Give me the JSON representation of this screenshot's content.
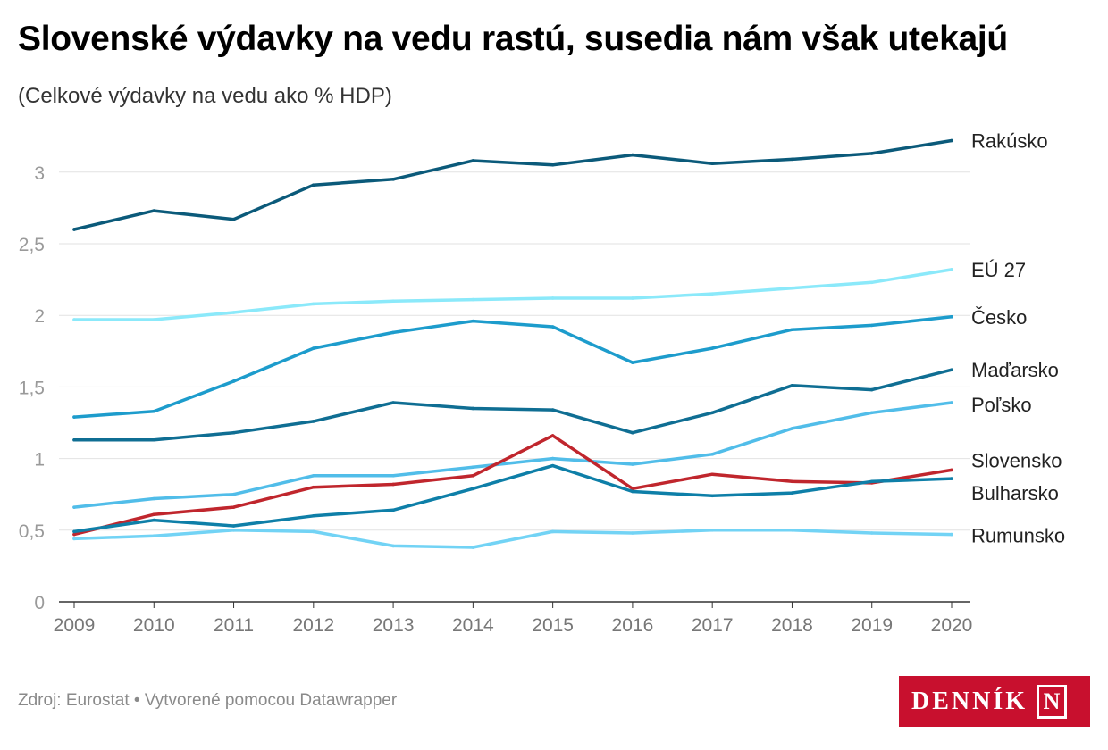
{
  "title": "Slovenské výdavky na vedu rastú, susedia nám však utekajú",
  "subtitle": "(Celkové výdavky na vedu ako % HDP)",
  "footer": {
    "source": "Zdroj: Eurostat • Vytvorené pomocou Datawrapper",
    "logo_text": "DENNÍK",
    "logo_mark": "N"
  },
  "chart_data": {
    "type": "line",
    "x": [
      2009,
      2010,
      2011,
      2012,
      2013,
      2014,
      2015,
      2016,
      2017,
      2018,
      2019,
      2020
    ],
    "ylim": [
      0,
      3.3
    ],
    "yticks": [
      0,
      0.5,
      1,
      1.5,
      2,
      2.5,
      3
    ],
    "ytick_labels": [
      "0",
      "0,5",
      "1",
      "1,5",
      "2",
      "2,5",
      "3"
    ],
    "grid": true,
    "legend": "direct labels at right end of lines",
    "series": [
      {
        "name": "Rakúsko",
        "color": "#0b5a7a",
        "values": [
          2.6,
          2.73,
          2.67,
          2.91,
          2.95,
          3.08,
          3.05,
          3.12,
          3.06,
          3.09,
          3.13,
          3.22
        ]
      },
      {
        "name": "EÚ 27",
        "color": "#8be9fa",
        "values": [
          1.97,
          1.97,
          2.02,
          2.08,
          2.1,
          2.11,
          2.12,
          2.12,
          2.15,
          2.19,
          2.23,
          2.32
        ]
      },
      {
        "name": "Česko",
        "color": "#1d9ccc",
        "values": [
          1.29,
          1.33,
          1.54,
          1.77,
          1.88,
          1.96,
          1.92,
          1.67,
          1.77,
          1.9,
          1.93,
          1.99
        ]
      },
      {
        "name": "Maďarsko",
        "color": "#0f6e93",
        "values": [
          1.13,
          1.13,
          1.18,
          1.26,
          1.39,
          1.35,
          1.34,
          1.18,
          1.32,
          1.51,
          1.48,
          1.62
        ]
      },
      {
        "name": "Poľsko",
        "color": "#51bde9",
        "values": [
          0.66,
          0.72,
          0.75,
          0.88,
          0.88,
          0.94,
          1.0,
          0.96,
          1.03,
          1.21,
          1.32,
          1.39
        ]
      },
      {
        "name": "Slovensko",
        "color": "#c0262d",
        "values": [
          0.47,
          0.61,
          0.66,
          0.8,
          0.82,
          0.88,
          1.16,
          0.79,
          0.89,
          0.84,
          0.83,
          0.92
        ]
      },
      {
        "name": "Bulharsko",
        "color": "#0e7fa8",
        "values": [
          0.49,
          0.57,
          0.53,
          0.6,
          0.64,
          0.79,
          0.95,
          0.77,
          0.74,
          0.76,
          0.84,
          0.86
        ]
      },
      {
        "name": "Rumunsko",
        "color": "#72d3f5",
        "values": [
          0.44,
          0.46,
          0.5,
          0.49,
          0.39,
          0.38,
          0.49,
          0.48,
          0.5,
          0.5,
          0.48,
          0.47
        ]
      }
    ]
  }
}
